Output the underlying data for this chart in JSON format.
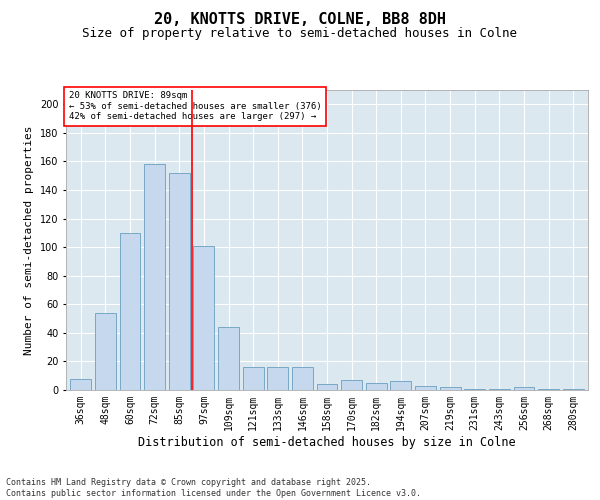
{
  "title1": "20, KNOTTS DRIVE, COLNE, BB8 8DH",
  "title2": "Size of property relative to semi-detached houses in Colne",
  "xlabel": "Distribution of semi-detached houses by size in Colne",
  "ylabel": "Number of semi-detached properties",
  "categories": [
    "36sqm",
    "48sqm",
    "60sqm",
    "72sqm",
    "85sqm",
    "97sqm",
    "109sqm",
    "121sqm",
    "133sqm",
    "146sqm",
    "158sqm",
    "170sqm",
    "182sqm",
    "194sqm",
    "207sqm",
    "219sqm",
    "231sqm",
    "243sqm",
    "256sqm",
    "268sqm",
    "280sqm"
  ],
  "values": [
    8,
    54,
    110,
    158,
    152,
    101,
    44,
    16,
    16,
    16,
    4,
    7,
    5,
    6,
    3,
    2,
    1,
    1,
    2,
    1,
    1
  ],
  "bar_color": "#c5d8ed",
  "bar_edge_color": "#6a9fc0",
  "vline_x": 4.5,
  "vline_color": "red",
  "annotation_text": "20 KNOTTS DRIVE: 89sqm\n← 53% of semi-detached houses are smaller (376)\n42% of semi-detached houses are larger (297) →",
  "annotation_box_color": "white",
  "annotation_box_edge": "red",
  "ylim": [
    0,
    210
  ],
  "yticks": [
    0,
    20,
    40,
    60,
    80,
    100,
    120,
    140,
    160,
    180,
    200
  ],
  "bg_color": "#dce8f0",
  "footer": "Contains HM Land Registry data © Crown copyright and database right 2025.\nContains public sector information licensed under the Open Government Licence v3.0.",
  "title1_fontsize": 11,
  "title2_fontsize": 9,
  "xlabel_fontsize": 8.5,
  "ylabel_fontsize": 8,
  "tick_fontsize": 7,
  "footer_fontsize": 6
}
